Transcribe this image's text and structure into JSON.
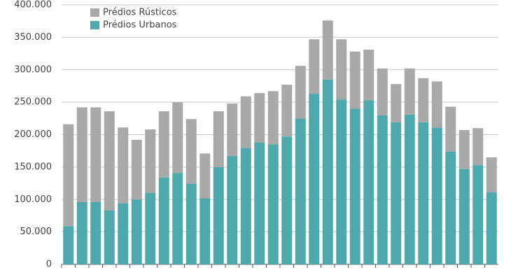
{
  "chart_data": {
    "type": "stacked_bar",
    "categories": [
      null,
      null,
      null,
      null,
      null,
      null,
      null,
      null,
      null,
      null,
      null,
      null,
      null,
      null,
      null,
      null,
      null,
      null,
      null,
      null,
      null,
      null,
      null,
      null,
      null,
      null,
      null,
      null,
      null,
      null,
      null,
      null
    ],
    "series": [
      {
        "name": "Prédios Urbanos",
        "color": "#4ea9ad",
        "values": [
          59000,
          96000,
          96000,
          83000,
          94000,
          100000,
          110000,
          134000,
          141000,
          124000,
          102000,
          150000,
          167000,
          179000,
          188000,
          185000,
          197000,
          225000,
          263000,
          285000,
          254000,
          240000,
          253000,
          230000,
          219000,
          231000,
          219000,
          211000,
          174000,
          147000,
          153000,
          111000
        ]
      },
      {
        "name": "Prédios Rústicos",
        "color": "#a9a9a9",
        "values": [
          157000,
          146000,
          146000,
          153000,
          117000,
          92000,
          98000,
          102000,
          109000,
          100000,
          69000,
          86000,
          81000,
          80000,
          76000,
          82000,
          80000,
          81000,
          84000,
          91000,
          93000,
          88000,
          78000,
          72000,
          59000,
          71000,
          68000,
          71000,
          69000,
          60000,
          57000,
          54000
        ]
      }
    ],
    "ylim": [
      0,
      400000
    ],
    "yticks": [
      0,
      {
        "value": 50000,
        "label": "50.000"
      },
      {
        "value": 100000,
        "label": "100.000"
      },
      {
        "value": 150000,
        "label": "150.000"
      },
      {
        "value": 200000,
        "label": "200.000"
      },
      {
        "value": 250000,
        "label": "250.000"
      },
      {
        "value": 300000,
        "label": "300.000"
      },
      {
        "value": 350000,
        "label": "350.000"
      },
      {
        "value": 400000,
        "label": "400.000"
      }
    ],
    "grid": true
  }
}
